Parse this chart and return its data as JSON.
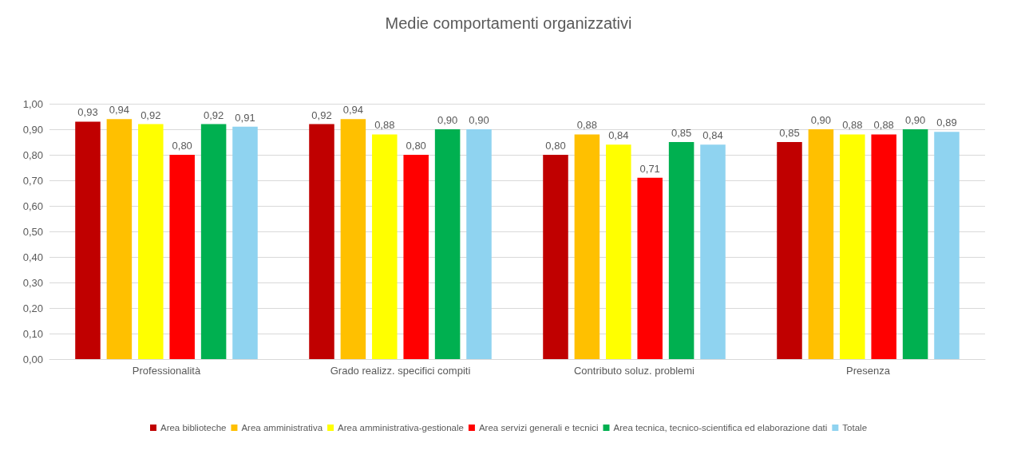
{
  "chart_data": {
    "type": "bar",
    "title": "Medie comportamenti organizzativi",
    "categories": [
      "Professionalità",
      "Grado realizz. specifici compiti",
      "Contributo soluz. problemi",
      "Presenza"
    ],
    "series": [
      {
        "name": "Area biblioteche",
        "color": "#c00000",
        "values": [
          0.93,
          0.92,
          0.8,
          0.85
        ],
        "value_labels": [
          "0,93",
          "0,92",
          "0,80",
          "0,85"
        ]
      },
      {
        "name": "Area amministrativa",
        "color": "#ffc000",
        "values": [
          0.94,
          0.94,
          0.88,
          0.9
        ],
        "value_labels": [
          "0,94",
          "0,94",
          "0,88",
          "0,90"
        ]
      },
      {
        "name": "Area amministrativa-gestionale",
        "color": "#ffff00",
        "values": [
          0.92,
          0.88,
          0.84,
          0.88
        ],
        "value_labels": [
          "0,92",
          "0,88",
          "0,84",
          "0,88"
        ]
      },
      {
        "name": "Area servizi generali e tecnici",
        "color": "#ff0000",
        "values": [
          0.8,
          0.8,
          0.71,
          0.88
        ],
        "value_labels": [
          "0,80",
          "0,80",
          "0,71",
          "0,88"
        ]
      },
      {
        "name": "Area tecnica, tecnico-scientifica ed elaborazione dati",
        "color": "#00b050",
        "values": [
          0.92,
          0.9,
          0.85,
          0.9
        ],
        "value_labels": [
          "0,92",
          "0,90",
          "0,85",
          "0,90"
        ]
      },
      {
        "name": "Totale",
        "color": "#8fd3f0",
        "values": [
          0.91,
          0.9,
          0.84,
          0.89
        ],
        "value_labels": [
          "0,91",
          "0,90",
          "0,84",
          "0,89"
        ]
      }
    ],
    "ylim": [
      0,
      1
    ],
    "yticks": [
      {
        "value": 0,
        "label": "0,00"
      },
      {
        "value": 0.1,
        "label": "0,10"
      },
      {
        "value": 0.2,
        "label": "0,20"
      },
      {
        "value": 0.3,
        "label": "0,30"
      },
      {
        "value": 0.4,
        "label": "0,40"
      },
      {
        "value": 0.5,
        "label": "0,50"
      },
      {
        "value": 0.6,
        "label": "0,60"
      },
      {
        "value": 0.7,
        "label": "0,70"
      },
      {
        "value": 0.8,
        "label": "0,80"
      },
      {
        "value": 0.9,
        "label": "0,90"
      },
      {
        "value": 1,
        "label": "1,00"
      }
    ],
    "grid": "y",
    "legend": "bottom"
  }
}
